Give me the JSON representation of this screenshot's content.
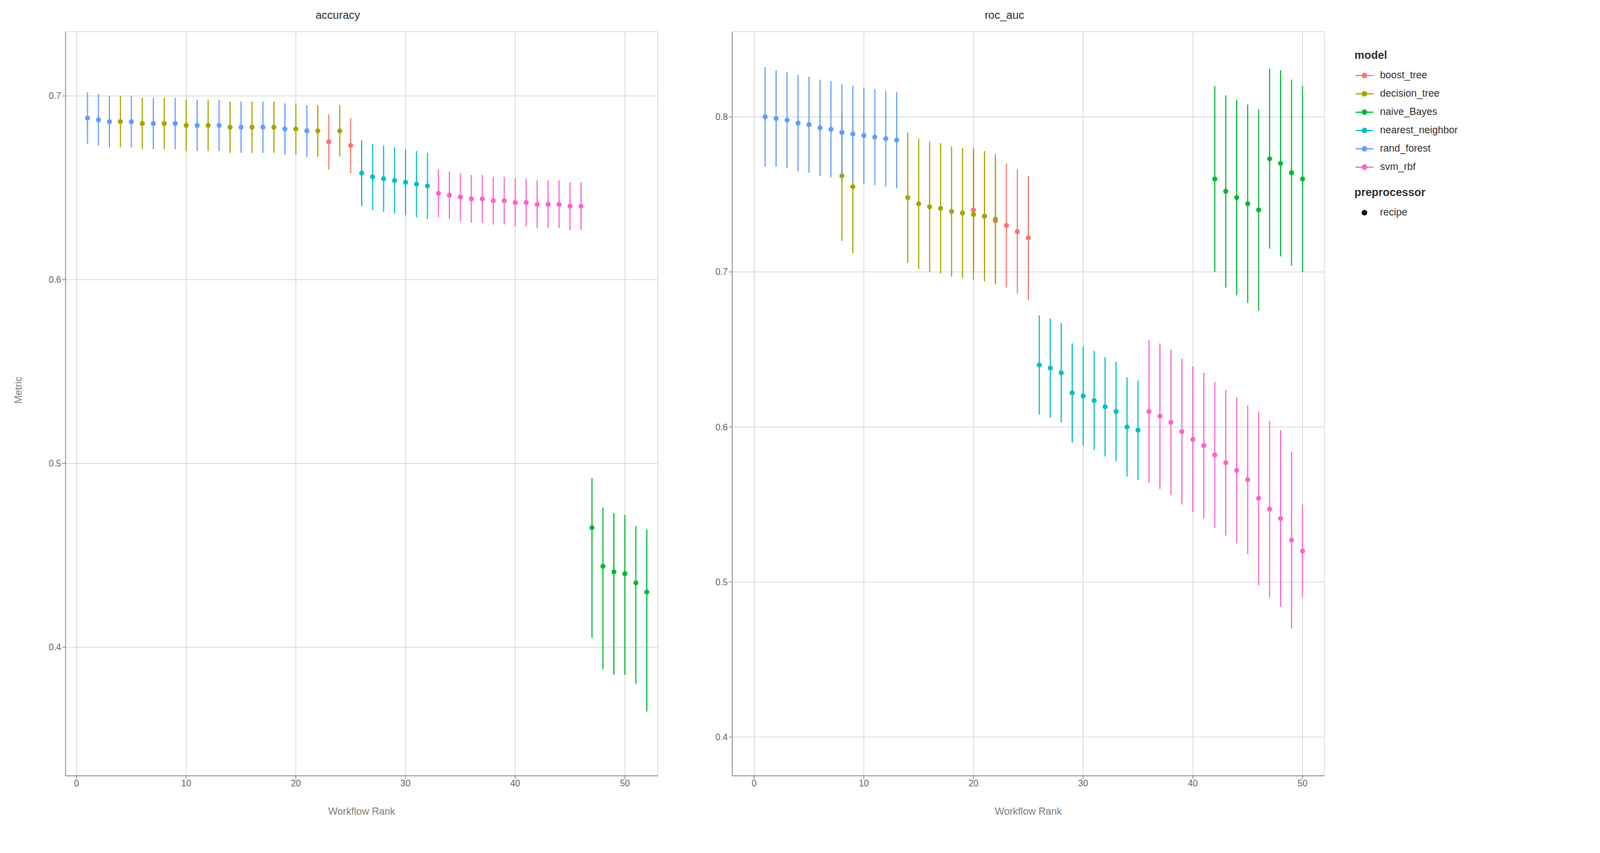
{
  "chart_data": [
    {
      "type": "scatter",
      "title": "accuracy",
      "x_label": "Workflow Rank",
      "y_label": "Metric",
      "xlim": [
        -1,
        53
      ],
      "xticks": [
        0,
        10,
        20,
        30,
        40,
        50
      ],
      "ylim": [
        0.33,
        0.735
      ],
      "yticks": [
        0.4,
        0.5,
        0.6,
        0.7
      ],
      "grid": true,
      "series": [
        {
          "name": "boost_tree",
          "color": "#F8766D",
          "x": [
            23,
            25
          ],
          "values": [
            0.675,
            0.673
          ],
          "lo": [
            0.66,
            0.658
          ],
          "hi": [
            0.69,
            0.688
          ]
        },
        {
          "name": "decision_tree",
          "color": "#A3A500",
          "x": [
            4,
            6,
            8,
            10,
            12,
            14,
            16,
            18,
            20,
            22,
            24
          ],
          "values": [
            0.686,
            0.685,
            0.685,
            0.684,
            0.684,
            0.683,
            0.683,
            0.683,
            0.682,
            0.681,
            0.681
          ],
          "lo": [
            0.672,
            0.671,
            0.671,
            0.67,
            0.67,
            0.669,
            0.669,
            0.669,
            0.668,
            0.667,
            0.667
          ],
          "hi": [
            0.7,
            0.699,
            0.699,
            0.698,
            0.698,
            0.697,
            0.697,
            0.697,
            0.696,
            0.695,
            0.695
          ]
        },
        {
          "name": "naive_Bayes",
          "color": "#00B938",
          "x": [
            47,
            48,
            49,
            50,
            51,
            52
          ],
          "values": [
            0.465,
            0.444,
            0.441,
            0.44,
            0.435,
            0.43
          ],
          "lo": [
            0.405,
            0.388,
            0.385,
            0.385,
            0.38,
            0.365
          ],
          "hi": [
            0.492,
            0.476,
            0.473,
            0.472,
            0.466,
            0.464
          ]
        },
        {
          "name": "nearest_neighbor",
          "color": "#00BFC4",
          "x": [
            26,
            27,
            28,
            29,
            30,
            31,
            32
          ],
          "values": [
            0.658,
            0.656,
            0.655,
            0.654,
            0.653,
            0.652,
            0.651
          ],
          "lo": [
            0.64,
            0.638,
            0.637,
            0.636,
            0.635,
            0.634,
            0.633
          ],
          "hi": [
            0.676,
            0.674,
            0.673,
            0.672,
            0.671,
            0.67,
            0.669
          ]
        },
        {
          "name": "rand_forest",
          "color": "#619CFF",
          "x": [
            1,
            2,
            3,
            5,
            7,
            9,
            11,
            13,
            15,
            17,
            19,
            21
          ],
          "values": [
            0.688,
            0.687,
            0.686,
            0.686,
            0.685,
            0.685,
            0.684,
            0.684,
            0.683,
            0.683,
            0.682,
            0.681
          ],
          "lo": [
            0.674,
            0.673,
            0.672,
            0.672,
            0.671,
            0.671,
            0.67,
            0.67,
            0.669,
            0.669,
            0.668,
            0.667
          ],
          "hi": [
            0.702,
            0.701,
            0.7,
            0.7,
            0.699,
            0.699,
            0.698,
            0.698,
            0.697,
            0.697,
            0.696,
            0.695
          ]
        },
        {
          "name": "svm_rbf",
          "color": "#FF61CC",
          "x": [
            33,
            34,
            35,
            36,
            37,
            38,
            39,
            40,
            41,
            42,
            43,
            44,
            45,
            46
          ],
          "values": [
            0.647,
            0.646,
            0.645,
            0.644,
            0.644,
            0.643,
            0.643,
            0.642,
            0.642,
            0.641,
            0.641,
            0.641,
            0.64,
            0.64
          ],
          "lo": [
            0.634,
            0.633,
            0.632,
            0.631,
            0.631,
            0.63,
            0.63,
            0.629,
            0.629,
            0.628,
            0.628,
            0.628,
            0.627,
            0.627
          ],
          "hi": [
            0.66,
            0.659,
            0.658,
            0.657,
            0.657,
            0.656,
            0.656,
            0.655,
            0.655,
            0.654,
            0.654,
            0.654,
            0.653,
            0.653
          ]
        }
      ]
    },
    {
      "type": "scatter",
      "title": "roc_auc",
      "x_label": "Workflow Rank",
      "xlim": [
        -2,
        52
      ],
      "xticks": [
        0,
        10,
        20,
        30,
        40,
        50
      ],
      "ylim": [
        0.375,
        0.855
      ],
      "yticks": [
        0.4,
        0.5,
        0.6,
        0.7,
        0.8
      ],
      "grid": true,
      "legend": "right",
      "legend_title": "model",
      "annotations": [
        {
          "title": "preprocessor",
          "text": "recipe",
          "marker": "o",
          "color": "#000000"
        }
      ],
      "series": [
        {
          "name": "boost_tree",
          "color": "#F8766D",
          "x": [
            20,
            21,
            22,
            23,
            24,
            25
          ],
          "values": [
            0.74,
            0.736,
            0.733,
            0.73,
            0.726,
            0.722
          ],
          "lo": [
            0.7,
            0.696,
            0.693,
            0.69,
            0.686,
            0.682
          ],
          "hi": [
            0.78,
            0.776,
            0.773,
            0.77,
            0.766,
            0.762
          ]
        },
        {
          "name": "decision_tree",
          "color": "#A3A500",
          "x": [
            8,
            9,
            14,
            15,
            16,
            17,
            18,
            19,
            20,
            21,
            22
          ],
          "values": [
            0.762,
            0.755,
            0.748,
            0.744,
            0.742,
            0.741,
            0.739,
            0.738,
            0.737,
            0.736,
            0.734
          ],
          "lo": [
            0.72,
            0.712,
            0.706,
            0.702,
            0.7,
            0.699,
            0.697,
            0.696,
            0.695,
            0.694,
            0.692
          ],
          "hi": [
            0.804,
            0.798,
            0.79,
            0.786,
            0.784,
            0.783,
            0.781,
            0.78,
            0.779,
            0.778,
            0.776
          ]
        },
        {
          "name": "naive_Bayes",
          "color": "#00B938",
          "x": [
            42,
            43,
            44,
            45,
            46,
            47,
            48,
            49,
            50
          ],
          "values": [
            0.76,
            0.752,
            0.748,
            0.744,
            0.74,
            0.773,
            0.77,
            0.764,
            0.76
          ],
          "lo": [
            0.7,
            0.69,
            0.685,
            0.68,
            0.675,
            0.715,
            0.71,
            0.704,
            0.7
          ],
          "hi": [
            0.82,
            0.814,
            0.811,
            0.808,
            0.805,
            0.831,
            0.83,
            0.824,
            0.82
          ]
        },
        {
          "name": "nearest_neighbor",
          "color": "#00BFC4",
          "x": [
            26,
            27,
            28,
            29,
            30,
            31,
            32,
            33,
            34,
            35
          ],
          "values": [
            0.64,
            0.638,
            0.635,
            0.622,
            0.62,
            0.617,
            0.613,
            0.61,
            0.6,
            0.598
          ],
          "lo": [
            0.608,
            0.606,
            0.603,
            0.59,
            0.588,
            0.585,
            0.581,
            0.578,
            0.568,
            0.566
          ],
          "hi": [
            0.672,
            0.67,
            0.667,
            0.654,
            0.652,
            0.649,
            0.645,
            0.642,
            0.632,
            0.63
          ]
        },
        {
          "name": "rand_forest",
          "color": "#619CFF",
          "x": [
            1,
            2,
            3,
            4,
            5,
            6,
            7,
            8,
            9,
            10,
            11,
            12,
            13
          ],
          "values": [
            0.8,
            0.799,
            0.798,
            0.796,
            0.795,
            0.793,
            0.792,
            0.79,
            0.789,
            0.788,
            0.787,
            0.786,
            0.785
          ],
          "lo": [
            0.768,
            0.768,
            0.767,
            0.765,
            0.764,
            0.762,
            0.761,
            0.759,
            0.758,
            0.757,
            0.756,
            0.755,
            0.754
          ],
          "hi": [
            0.832,
            0.83,
            0.829,
            0.827,
            0.826,
            0.824,
            0.823,
            0.821,
            0.82,
            0.819,
            0.818,
            0.817,
            0.816
          ]
        },
        {
          "name": "svm_rbf",
          "color": "#FF61CC",
          "x": [
            36,
            37,
            38,
            39,
            40,
            41,
            42,
            43,
            44,
            45,
            46,
            47,
            48,
            49,
            50
          ],
          "values": [
            0.61,
            0.607,
            0.603,
            0.597,
            0.592,
            0.588,
            0.582,
            0.577,
            0.572,
            0.566,
            0.554,
            0.547,
            0.541,
            0.527,
            0.52
          ],
          "lo": [
            0.564,
            0.56,
            0.556,
            0.55,
            0.545,
            0.541,
            0.535,
            0.53,
            0.525,
            0.518,
            0.498,
            0.49,
            0.484,
            0.47,
            0.49
          ],
          "hi": [
            0.656,
            0.654,
            0.65,
            0.644,
            0.639,
            0.635,
            0.629,
            0.624,
            0.619,
            0.614,
            0.61,
            0.604,
            0.598,
            0.584,
            0.55
          ]
        }
      ]
    }
  ]
}
